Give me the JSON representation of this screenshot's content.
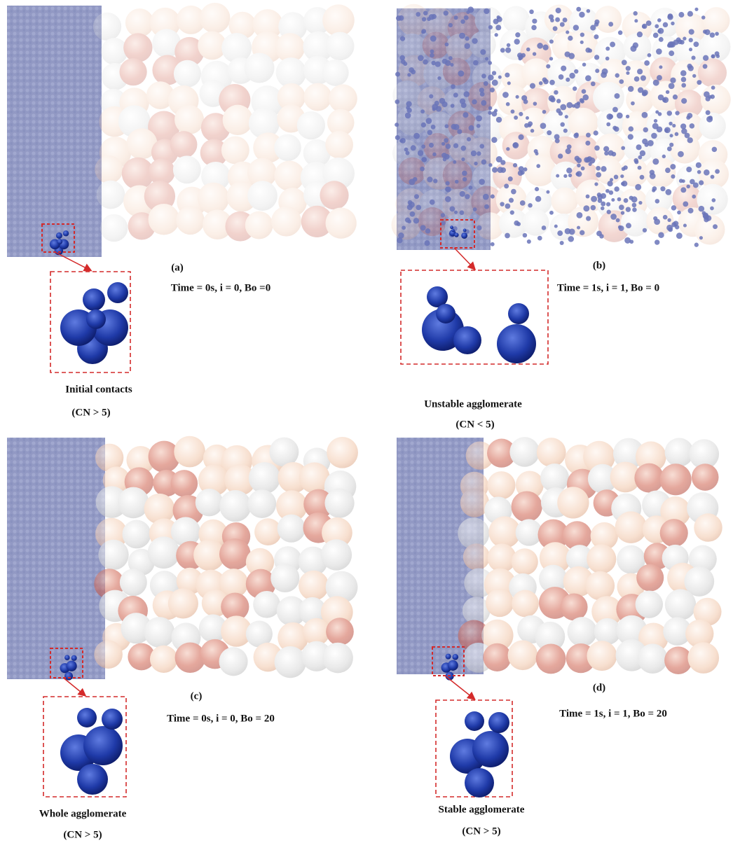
{
  "panels": [
    {
      "label": "(a)",
      "condition": "Time = 0s, i = 0, Bo =0",
      "state": "Initial contacts",
      "cn": "(CN > 5)"
    },
    {
      "label": "(b)",
      "condition": "Time = 1s, i = 1, Bo = 0",
      "state": "Unstable agglomerate",
      "cn": "(CN < 5)"
    },
    {
      "label": "(c)",
      "condition": "Time = 0s, i = 0, Bo = 20",
      "state": "Whole agglomerate",
      "cn": "(CN > 5)"
    },
    {
      "label": "(d)",
      "condition": "Time = 1s, i = 1, Bo = 20",
      "state": "Stable agglomerate",
      "cn": "(CN > 5)"
    }
  ]
}
